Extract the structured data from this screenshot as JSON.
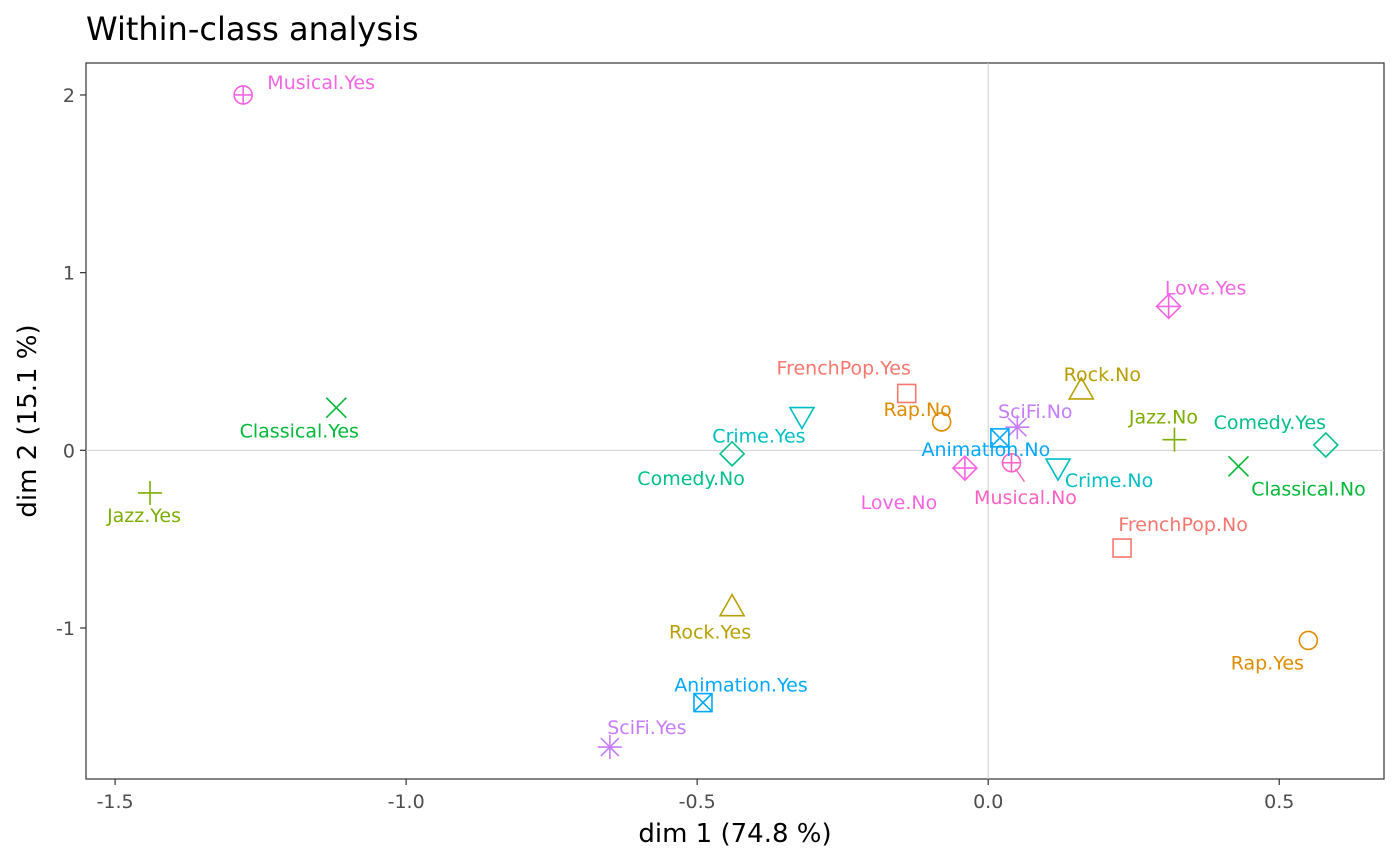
{
  "chart_data": {
    "type": "scatter",
    "title": "Within-class analysis",
    "xlabel": "dim 1 (74.8 %)",
    "ylabel": "dim 2 (15.1 %)",
    "xlim": [
      -1.55,
      0.68
    ],
    "ylim": [
      -1.85,
      2.18
    ],
    "x_ticks": [
      -1.5,
      -1.0,
      -0.5,
      0.0,
      0.5
    ],
    "x_tick_labels": [
      "-1.5",
      "-1.0",
      "-0.5",
      "0.0",
      "0.5"
    ],
    "y_ticks": [
      -1,
      0,
      1,
      2
    ],
    "y_tick_labels": [
      "-1",
      "0",
      "1",
      "2"
    ],
    "grid": false,
    "reference_lines": {
      "x": 0,
      "y": 0
    },
    "legend": "none",
    "points": [
      {
        "label": "Musical.Yes",
        "x": -1.28,
        "y": 2.0,
        "shape": "circle-plus",
        "color": "#f564e3"
      },
      {
        "label": "Classical.Yes",
        "x": -1.12,
        "y": 0.24,
        "shape": "x",
        "color": "#00ba38"
      },
      {
        "label": "Jazz.Yes",
        "x": -1.44,
        "y": -0.24,
        "shape": "plus",
        "color": "#7cae00"
      },
      {
        "label": "FrenchPop.Yes",
        "x": -0.14,
        "y": 0.32,
        "shape": "square",
        "color": "#f8766d"
      },
      {
        "label": "Rap.No",
        "x": -0.08,
        "y": 0.16,
        "shape": "circle",
        "color": "#de8c00"
      },
      {
        "label": "Crime.Yes",
        "x": -0.32,
        "y": 0.19,
        "shape": "triangle-down",
        "color": "#00bfc4"
      },
      {
        "label": "Comedy.No",
        "x": -0.44,
        "y": -0.02,
        "shape": "diamond",
        "color": "#00c08b"
      },
      {
        "label": "Rock.Yes",
        "x": -0.44,
        "y": -0.88,
        "shape": "triangle",
        "color": "#b79f00"
      },
      {
        "label": "Animation.Yes",
        "x": -0.49,
        "y": -1.42,
        "shape": "square-x",
        "color": "#00a9ff"
      },
      {
        "label": "SciFi.Yes",
        "x": -0.65,
        "y": -1.67,
        "shape": "asterisk",
        "color": "#c77cff"
      },
      {
        "label": "Love.Yes",
        "x": 0.31,
        "y": 0.81,
        "shape": "diamond-plus",
        "color": "#f564e3"
      },
      {
        "label": "Rock.No",
        "x": 0.16,
        "y": 0.34,
        "shape": "triangle",
        "color": "#b79f00"
      },
      {
        "label": "SciFi.No",
        "x": 0.05,
        "y": 0.13,
        "shape": "asterisk",
        "color": "#c77cff"
      },
      {
        "label": "Animation.No",
        "x": 0.02,
        "y": 0.07,
        "shape": "square-x",
        "color": "#00a9ff"
      },
      {
        "label": "Jazz.No",
        "x": 0.32,
        "y": 0.06,
        "shape": "plus",
        "color": "#7cae00"
      },
      {
        "label": "Comedy.Yes",
        "x": 0.58,
        "y": 0.03,
        "shape": "diamond",
        "color": "#00c08b"
      },
      {
        "label": "Crime.No",
        "x": 0.12,
        "y": -0.1,
        "shape": "triangle-down",
        "color": "#00bfc4"
      },
      {
        "label": "Love.No",
        "x": -0.04,
        "y": -0.1,
        "shape": "diamond-plus",
        "color": "#f564e3"
      },
      {
        "label": "Musical.No",
        "x": 0.04,
        "y": -0.07,
        "shape": "circle-plus",
        "color": "#ff61c3"
      },
      {
        "label": "Classical.No",
        "x": 0.43,
        "y": -0.09,
        "shape": "x",
        "color": "#00ba38"
      },
      {
        "label": "FrenchPop.No",
        "x": 0.23,
        "y": -0.55,
        "shape": "square",
        "color": "#f8766d"
      },
      {
        "label": "Rap.Yes",
        "x": 0.55,
        "y": -1.07,
        "shape": "circle",
        "color": "#de8c00"
      }
    ]
  }
}
